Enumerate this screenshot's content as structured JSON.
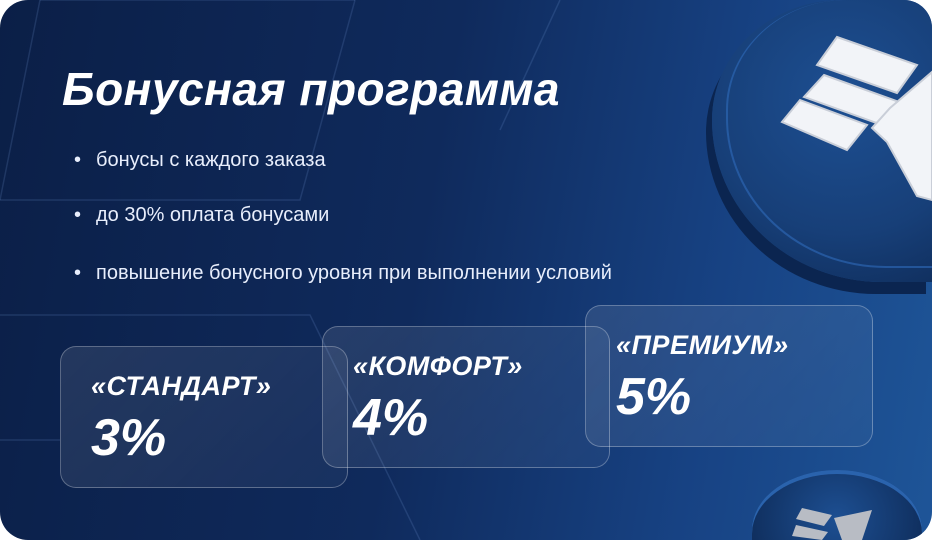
{
  "title": "Бонусная программа",
  "bullets": [
    "бонусы с каждого заказа",
    "до 30% оплата бонусами",
    "повышение бонусного уровня при выполнении условий"
  ],
  "levels": [
    {
      "name": "«СТАНДАРТ»",
      "percent": "3%"
    },
    {
      "name": "«КОМФОРТ»",
      "percent": "4%"
    },
    {
      "name": "«ПРЕМИУМ»",
      "percent": "5%"
    }
  ],
  "colors": {
    "background": "#0f2a5c",
    "accent": "#1e5598",
    "text": "#ffffff"
  },
  "icons": [
    "coin-logo-icon"
  ]
}
